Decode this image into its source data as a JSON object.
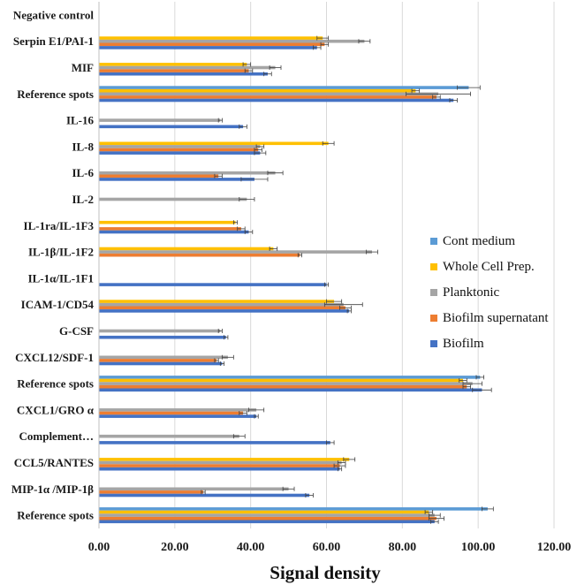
{
  "chart_data": {
    "type": "bar",
    "orientation": "horizontal",
    "xlabel": "Signal density",
    "xlim": [
      0,
      120
    ],
    "xticks": [
      "0.00",
      "20.00",
      "40.00",
      "60.00",
      "80.00",
      "100.00",
      "120.00"
    ],
    "grid": "vertical",
    "legend_position": "right",
    "categories": [
      "Negative control",
      "Serpin E1/PAI-1",
      "MIF",
      "Reference spots",
      "IL-16",
      "IL-8",
      "IL-6",
      "IL-2",
      "IL-1ra/IL-1F3",
      "IL-1β/IL-1F2",
      "IL-1α/IL-1F1",
      "ICAM-1/CD54",
      "G-CSF",
      "CXCL12/SDF-1",
      "Reference spots",
      "CXCL1/GRO α",
      "Complement…",
      "CCL5/RANTES",
      "MIP-1α /MIP-1β",
      "Reference spots"
    ],
    "series": [
      {
        "name": "Cont medium",
        "color": "#5B9BD5",
        "values": [
          0,
          0,
          0,
          97.5,
          0,
          0,
          0,
          0,
          0,
          0,
          0,
          0,
          0,
          0,
          100.5,
          0,
          0,
          0,
          0,
          102.5
        ],
        "errors": [
          0,
          0,
          0,
          3,
          0,
          0,
          0,
          0,
          0,
          0,
          0,
          0,
          0,
          0,
          1,
          0,
          0,
          0,
          0,
          1.5
        ]
      },
      {
        "name": "Whole Cell Prep.",
        "color": "#FFC000",
        "values": [
          0,
          59,
          39,
          83.5,
          0,
          60.5,
          0,
          0,
          36,
          46,
          0,
          62,
          0,
          0,
          96,
          0,
          0,
          66,
          0,
          87
        ],
        "errors": [
          0,
          1.5,
          1,
          1,
          0,
          1.5,
          0,
          0,
          0.5,
          1,
          0,
          2,
          0,
          0,
          1,
          0,
          0,
          1.5,
          0,
          1
        ]
      },
      {
        "name": "Planktonic",
        "color": "#A5A5A5",
        "values": [
          0,
          70,
          46.5,
          89.5,
          32,
          42.5,
          46.5,
          39,
          0,
          72,
          0,
          64.5,
          32,
          34,
          98.5,
          41.5,
          37,
          64,
          50,
          88.5
        ],
        "errors": [
          0,
          1.5,
          1.5,
          8.5,
          0.5,
          1,
          2,
          2,
          0,
          1.5,
          0,
          5,
          0.5,
          1.5,
          2.5,
          2,
          1.5,
          1,
          1.5,
          1.5
        ]
      },
      {
        "name": "Biofilm supernatant",
        "color": "#ED7D31",
        "values": [
          0,
          59.5,
          39.5,
          89,
          0,
          42,
          31.5,
          0,
          37.5,
          53,
          0,
          65,
          0,
          31,
          97,
          38,
          0,
          63.5,
          27.5,
          89
        ],
        "errors": [
          0,
          1,
          1,
          1,
          0,
          1,
          1,
          0,
          1,
          0.5,
          0,
          1.5,
          0,
          0.5,
          1,
          1,
          0,
          1.5,
          0.5,
          2
        ]
      },
      {
        "name": "Biofilm",
        "color": "#4472C4",
        "values": [
          0,
          57.5,
          44.5,
          93.5,
          38,
          42.5,
          41,
          0,
          39.5,
          0,
          60,
          66,
          33.5,
          32.5,
          101,
          41.5,
          61,
          63.5,
          55.5,
          88.5
        ],
        "errors": [
          0,
          1,
          1,
          1,
          1,
          1.5,
          3.5,
          0,
          1,
          0,
          0.5,
          0.5,
          0.5,
          0.5,
          2.5,
          0.5,
          1,
          0.5,
          1,
          1
        ]
      }
    ]
  }
}
